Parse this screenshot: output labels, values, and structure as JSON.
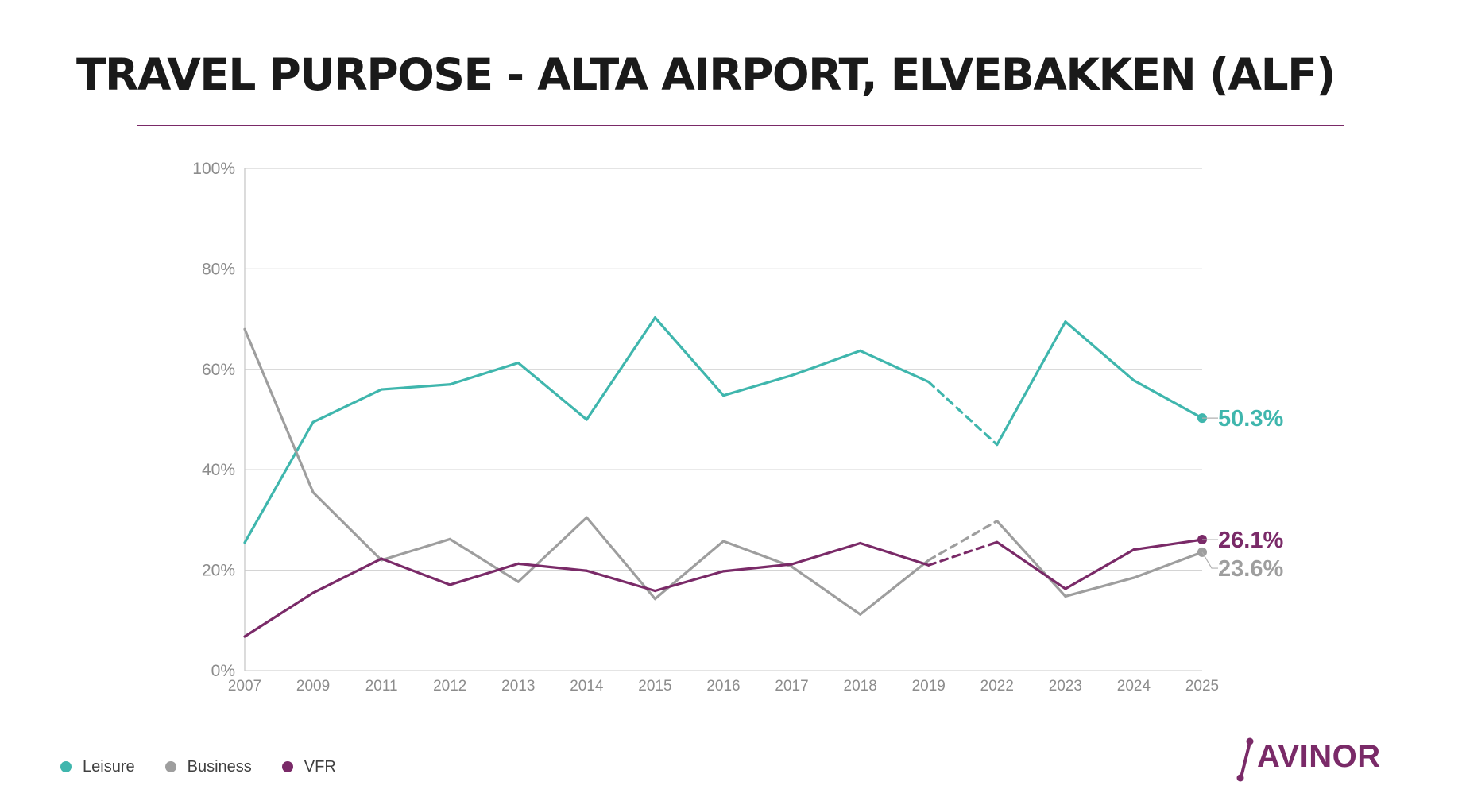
{
  "title": "TRAVEL PURPOSE -  ALTA AIRPORT, ELVEBAKKEN (ALF)",
  "colors": {
    "accent": "#7a2a68",
    "leisure": "#3fb6ad",
    "business": "#9e9e9e",
    "vfr": "#7a2a68"
  },
  "logo": {
    "text": "AVINOR"
  },
  "chart_data": {
    "type": "line",
    "categories": [
      "2007",
      "2009",
      "2011",
      "2012",
      "2013",
      "2014",
      "2015",
      "2016",
      "2017",
      "2018",
      "2019",
      "2022",
      "2023",
      "2024",
      "2025"
    ],
    "ylim": [
      0,
      100
    ],
    "yticks": [
      "0%",
      "20%",
      "40%",
      "60%",
      "80%",
      "100%"
    ],
    "grid": true,
    "legend_position": "bottom-left",
    "dashed_segment": [
      "2019",
      "2022"
    ],
    "series": [
      {
        "name": "Leisure",
        "color": "#3fb6ad",
        "values": [
          25.5,
          49.5,
          56,
          57,
          61.3,
          50,
          70.3,
          54.8,
          58.8,
          63.7,
          57.5,
          45,
          69.5,
          57.8,
          50.3
        ],
        "end_label": "50.3%"
      },
      {
        "name": "Business",
        "color": "#9e9e9e",
        "values": [
          68,
          35.5,
          22,
          26.2,
          17.7,
          30.5,
          14.3,
          25.8,
          20.7,
          11.2,
          22,
          29.8,
          14.8,
          18.5,
          23.6
        ],
        "end_label": "23.6%"
      },
      {
        "name": "VFR",
        "color": "#7a2a68",
        "values": [
          6.8,
          15.5,
          22.3,
          17.1,
          21.3,
          19.9,
          15.9,
          19.8,
          21.2,
          25.4,
          21,
          25.6,
          16.3,
          24.1,
          26.1
        ],
        "end_label": "26.1%"
      }
    ]
  }
}
